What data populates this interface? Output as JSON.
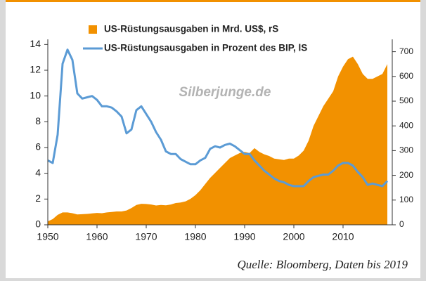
{
  "chart_data": {
    "type": "line-area",
    "watermark": "Silberjunge.de",
    "source": "Quelle: Bloomberg, Daten bis 2019",
    "x": [
      1950,
      1951,
      1952,
      1953,
      1954,
      1955,
      1956,
      1957,
      1958,
      1959,
      1960,
      1961,
      1962,
      1963,
      1964,
      1965,
      1966,
      1967,
      1968,
      1969,
      1970,
      1971,
      1972,
      1973,
      1974,
      1975,
      1976,
      1977,
      1978,
      1979,
      1980,
      1981,
      1982,
      1983,
      1984,
      1985,
      1986,
      1987,
      1988,
      1989,
      1990,
      1991,
      1992,
      1993,
      1994,
      1995,
      1996,
      1997,
      1998,
      1999,
      2000,
      2001,
      2002,
      2003,
      2004,
      2005,
      2006,
      2007,
      2008,
      2009,
      2010,
      2011,
      2012,
      2013,
      2014,
      2015,
      2016,
      2017,
      2018,
      2019
    ],
    "series": [
      {
        "name": "US-Rüstungsausgaben in Mrd. US$, rS",
        "color": "#f29100",
        "axis": "y2",
        "values": [
          14,
          23,
          40,
          50,
          50,
          47,
          42,
          43,
          44,
          46,
          48,
          47,
          50,
          52,
          54,
          54,
          58,
          68,
          80,
          85,
          84,
          82,
          78,
          80,
          79,
          82,
          88,
          90,
          95,
          105,
          120,
          140,
          165,
          190,
          210,
          230,
          250,
          270,
          280,
          290,
          295,
          290,
          310,
          295,
          285,
          278,
          268,
          265,
          262,
          268,
          268,
          280,
          300,
          340,
          400,
          440,
          480,
          510,
          540,
          600,
          640,
          670,
          680,
          650,
          610,
          590,
          590,
          600,
          610,
          650
        ]
      },
      {
        "name": "US-Rüstungsausgaben in Prozent des BIP, lS",
        "color": "#5b9bd5",
        "axis": "y",
        "values": [
          5.0,
          4.8,
          7.0,
          12.5,
          13.6,
          12.8,
          10.2,
          9.8,
          9.9,
          10.0,
          9.7,
          9.2,
          9.2,
          9.1,
          8.8,
          8.4,
          7.1,
          7.4,
          8.9,
          9.2,
          8.6,
          8.0,
          7.2,
          6.6,
          5.7,
          5.5,
          5.5,
          5.1,
          4.9,
          4.7,
          4.7,
          5.0,
          5.2,
          5.9,
          6.1,
          6.0,
          6.2,
          6.3,
          6.1,
          5.8,
          5.5,
          5.5,
          5.0,
          4.6,
          4.2,
          3.9,
          3.6,
          3.4,
          3.3,
          3.1,
          3.0,
          3.0,
          3.0,
          3.4,
          3.7,
          3.8,
          3.9,
          3.9,
          4.2,
          4.6,
          4.8,
          4.8,
          4.6,
          4.1,
          3.7,
          3.1,
          3.2,
          3.1,
          3.0,
          3.4
        ]
      }
    ],
    "xlim": [
      1950,
      2020
    ],
    "xticks": [
      1950,
      1960,
      1970,
      1980,
      1990,
      2000,
      2010
    ],
    "ylim": [
      0,
      14.4
    ],
    "yticks": [
      0,
      2,
      4,
      6,
      8,
      10,
      12,
      14
    ],
    "y2lim": [
      0,
      750
    ],
    "y2ticks": [
      0,
      100,
      200,
      300,
      400,
      500,
      600,
      700
    ]
  }
}
